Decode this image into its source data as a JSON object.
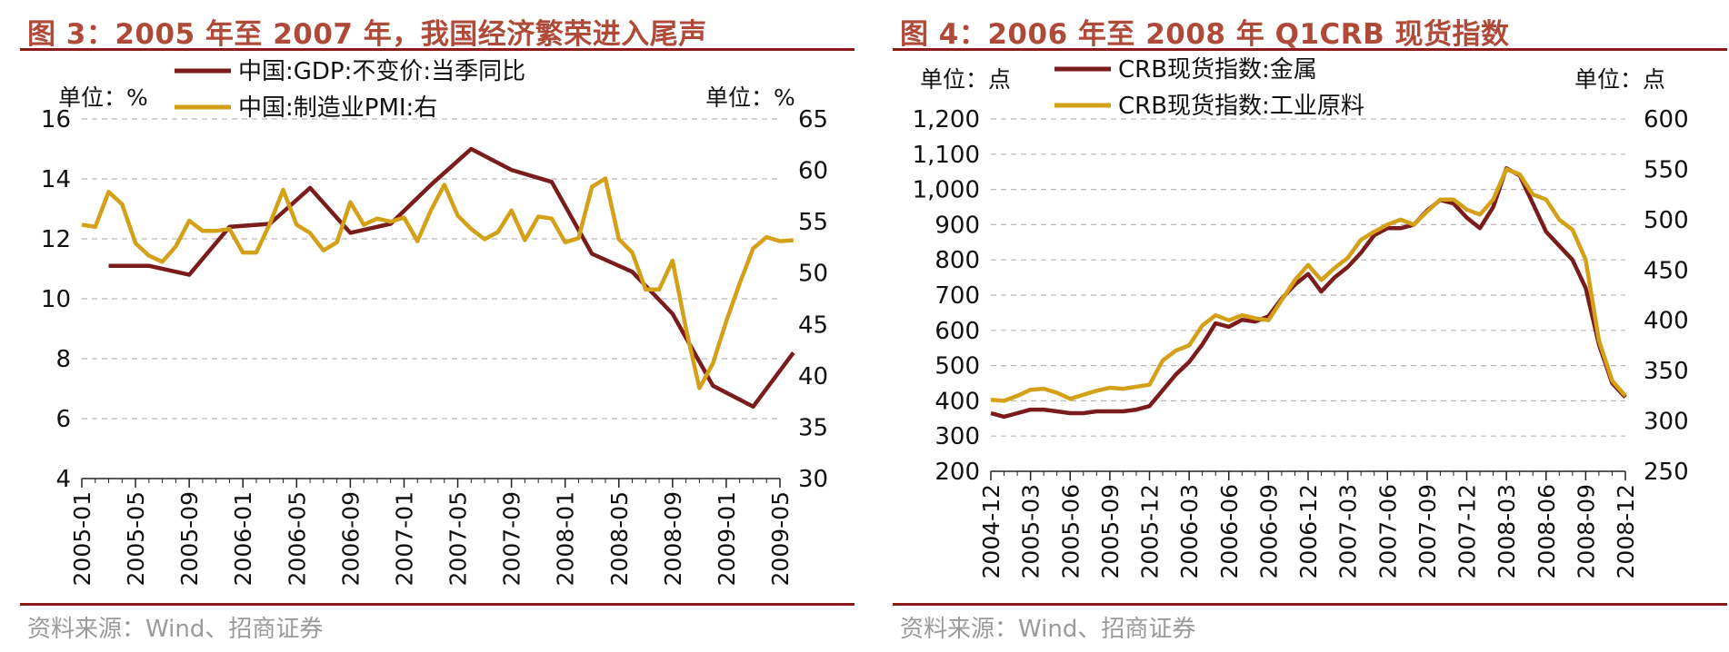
{
  "page": {
    "left_title": "图 3：2005 年至 2007 年，我国经济繁荣进入尾声",
    "right_title": "图 4：2006 年至 2008 年 Q1CRB 现货指数",
    "left_source": "资料来源：Wind、招商证券",
    "right_source": "资料来源：Wind、招商证券"
  },
  "chart_data": [
    {
      "type": "line",
      "unit_left": "单位：%",
      "unit_right": "单位：%",
      "ylim_left": [
        4,
        16
      ],
      "ylim_right": [
        30,
        65
      ],
      "yticks_left": [
        "4",
        "6",
        "8",
        "10",
        "12",
        "14",
        "16"
      ],
      "yticks_right": [
        "30",
        "35",
        "40",
        "45",
        "50",
        "55",
        "60",
        "65"
      ],
      "xticks": [
        "2005-01",
        "2005-05",
        "2005-09",
        "2006-01",
        "2006-05",
        "2006-09",
        "2007-01",
        "2007-05",
        "2007-09",
        "2008-01",
        "2008-05",
        "2008-09",
        "2009-01",
        "2009-05"
      ],
      "grid": true,
      "legend": "top",
      "colors": {
        "gdp": "#7b1c1c",
        "pmi": "#d4a017"
      },
      "series": [
        {
          "name": "中国:GDP:不变价:当季同比",
          "axis": "left",
          "x": [
            "2005-03",
            "2005-06",
            "2005-09",
            "2005-12",
            "2006-03",
            "2006-06",
            "2006-09",
            "2006-12",
            "2007-03",
            "2007-06",
            "2007-09",
            "2007-12",
            "2008-03",
            "2008-06",
            "2008-09",
            "2008-12",
            "2009-03",
            "2009-06"
          ],
          "values": [
            11.1,
            11.1,
            10.8,
            12.4,
            12.5,
            13.7,
            12.2,
            12.5,
            13.8,
            15.0,
            14.3,
            13.9,
            11.5,
            10.9,
            9.5,
            7.1,
            6.4,
            8.2
          ]
        },
        {
          "name": "中国:制造业PMI:右",
          "axis": "right",
          "x": [
            "2005-01",
            "2005-02",
            "2005-03",
            "2005-04",
            "2005-05",
            "2005-06",
            "2005-07",
            "2005-08",
            "2005-09",
            "2005-10",
            "2005-11",
            "2005-12",
            "2006-01",
            "2006-02",
            "2006-03",
            "2006-04",
            "2006-05",
            "2006-06",
            "2006-07",
            "2006-08",
            "2006-09",
            "2006-10",
            "2006-11",
            "2006-12",
            "2007-01",
            "2007-02",
            "2007-03",
            "2007-04",
            "2007-05",
            "2007-06",
            "2007-07",
            "2007-08",
            "2007-09",
            "2007-10",
            "2007-11",
            "2007-12",
            "2008-01",
            "2008-02",
            "2008-03",
            "2008-04",
            "2008-05",
            "2008-06",
            "2008-07",
            "2008-08",
            "2008-09",
            "2008-10",
            "2008-11",
            "2008-12",
            "2009-01",
            "2009-02",
            "2009-03",
            "2009-04",
            "2009-05",
            "2009-06"
          ],
          "values": [
            54.7,
            54.5,
            57.9,
            56.7,
            52.9,
            51.7,
            51.1,
            52.6,
            55.1,
            54.1,
            54.1,
            54.3,
            52.0,
            52.0,
            54.8,
            58.1,
            54.7,
            53.9,
            52.2,
            53.0,
            56.9,
            54.7,
            55.3,
            55.0,
            55.4,
            53.1,
            56.1,
            58.6,
            55.6,
            54.3,
            53.3,
            54.0,
            56.1,
            53.2,
            55.5,
            55.3,
            53.0,
            53.4,
            58.4,
            59.2,
            53.3,
            52.0,
            48.4,
            48.4,
            51.2,
            44.6,
            38.8,
            41.2,
            45.3,
            49.0,
            52.4,
            53.5,
            53.1,
            53.2
          ]
        }
      ]
    },
    {
      "type": "line",
      "unit_left": "单位：点",
      "unit_right": "单位：点",
      "ylim_left": [
        200,
        1200
      ],
      "ylim_right": [
        250,
        600
      ],
      "yticks_left": [
        "200",
        "300",
        "400",
        "500",
        "600",
        "700",
        "800",
        "900",
        "1,000",
        "1,100",
        "1,200"
      ],
      "yticks_right": [
        "250",
        "300",
        "350",
        "400",
        "450",
        "500",
        "550",
        "600"
      ],
      "xticks": [
        "2004-12",
        "2005-03",
        "2005-06",
        "2005-09",
        "2005-12",
        "2006-03",
        "2006-06",
        "2006-09",
        "2006-12",
        "2007-03",
        "2007-06",
        "2007-09",
        "2007-12",
        "2008-03",
        "2008-06",
        "2008-09",
        "2008-12"
      ],
      "grid": true,
      "legend": "top",
      "colors": {
        "metals": "#7b1c1c",
        "raw": "#d4a017"
      },
      "series": [
        {
          "name": "CRB现货指数:金属",
          "axis": "left",
          "x": [
            "2004-12",
            "2005-01",
            "2005-02",
            "2005-03",
            "2005-04",
            "2005-05",
            "2005-06",
            "2005-07",
            "2005-08",
            "2005-09",
            "2005-10",
            "2005-11",
            "2005-12",
            "2006-01",
            "2006-02",
            "2006-03",
            "2006-04",
            "2006-05",
            "2006-06",
            "2006-07",
            "2006-08",
            "2006-09",
            "2006-10",
            "2006-11",
            "2006-12",
            "2007-01",
            "2007-02",
            "2007-03",
            "2007-04",
            "2007-05",
            "2007-06",
            "2007-07",
            "2007-08",
            "2007-09",
            "2007-10",
            "2007-11",
            "2007-12",
            "2008-01",
            "2008-02",
            "2008-03",
            "2008-04",
            "2008-05",
            "2008-06",
            "2008-07",
            "2008-08",
            "2008-09",
            "2008-10",
            "2008-11",
            "2008-12"
          ],
          "values": [
            365,
            355,
            365,
            375,
            375,
            370,
            365,
            365,
            370,
            370,
            370,
            375,
            385,
            430,
            475,
            510,
            560,
            620,
            610,
            630,
            625,
            640,
            690,
            730,
            760,
            710,
            750,
            780,
            820,
            870,
            890,
            890,
            900,
            940,
            970,
            960,
            920,
            890,
            950,
            1060,
            1040,
            960,
            880,
            840,
            800,
            720,
            560,
            450,
            410
          ]
        },
        {
          "name": "CRB现货指数:工业原料",
          "axis": "right",
          "x": [
            "2004-12",
            "2005-01",
            "2005-02",
            "2005-03",
            "2005-04",
            "2005-05",
            "2005-06",
            "2005-07",
            "2005-08",
            "2005-09",
            "2005-10",
            "2005-11",
            "2005-12",
            "2006-01",
            "2006-02",
            "2006-03",
            "2006-04",
            "2006-05",
            "2006-06",
            "2006-07",
            "2006-08",
            "2006-09",
            "2006-10",
            "2006-11",
            "2006-12",
            "2007-01",
            "2007-02",
            "2007-03",
            "2007-04",
            "2007-05",
            "2007-06",
            "2007-07",
            "2007-08",
            "2007-09",
            "2007-10",
            "2007-11",
            "2007-12",
            "2008-01",
            "2008-02",
            "2008-03",
            "2008-04",
            "2008-05",
            "2008-06",
            "2008-07",
            "2008-08",
            "2008-09",
            "2008-10",
            "2008-11",
            "2008-12"
          ],
          "values": [
            321,
            320,
            325,
            331,
            332,
            328,
            322,
            326,
            330,
            333,
            332,
            334,
            336,
            360,
            370,
            375,
            395,
            405,
            400,
            405,
            402,
            400,
            420,
            440,
            455,
            440,
            452,
            462,
            480,
            488,
            495,
            500,
            495,
            508,
            520,
            520,
            510,
            505,
            520,
            550,
            545,
            525,
            520,
            500,
            490,
            460,
            380,
            340,
            325
          ]
        }
      ]
    }
  ]
}
